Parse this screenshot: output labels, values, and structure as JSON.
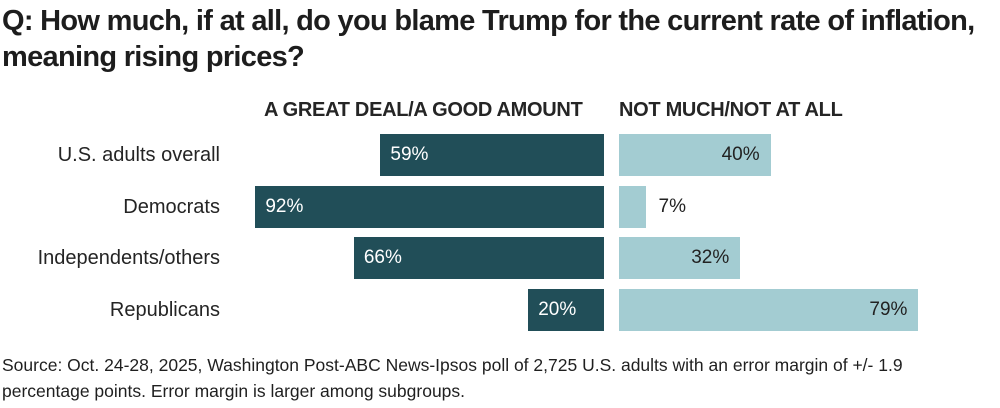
{
  "title": "Q: How much, if at all, do you blame Trump for the current rate of inflation, meaning rising prices?",
  "column_headers": {
    "left": "A GREAT DEAL/A GOOD AMOUNT",
    "right": "NOT MUCH/NOT AT ALL"
  },
  "source_note": "Source: Oct. 24-28, 2025, Washington Post-ABC News-Ipsos poll of 2,725 U.S. adults with an error margin of +/- 1.9 percentage points. Error margin is larger among subgroups.",
  "colors": {
    "dark_bar": "#214e58",
    "light_bar": "#a3ccd2",
    "title_text": "#1d1d1d",
    "body_text": "#242424",
    "value_on_dark": "#ffffff",
    "value_on_light": "#222222"
  },
  "chart_data": {
    "type": "bar",
    "orientation": "horizontal",
    "layout": "two-column-diverging",
    "title": "Q: How much, if at all, do you blame Trump for the current rate of inflation, meaning rising prices?",
    "categories": [
      "U.S. adults overall",
      "Democrats",
      "Independents/others",
      "Republicans"
    ],
    "series": [
      {
        "name": "A GREAT DEAL/A GOOD AMOUNT",
        "values": [
          59,
          92,
          66,
          20
        ],
        "labels": [
          "59%",
          "92%",
          "66%",
          "20%"
        ],
        "color": "#214e58",
        "value_label_position": "inside-start"
      },
      {
        "name": "NOT MUCH/NOT AT ALL",
        "values": [
          40,
          7,
          32,
          79
        ],
        "labels": [
          "40%",
          "7%",
          "32%",
          "79%"
        ],
        "color": "#a3ccd2",
        "value_label_position": "inside-end"
      }
    ],
    "unit": "%",
    "value_range": [
      0,
      100
    ],
    "grid": false,
    "legend_position": "column-headers-top"
  }
}
